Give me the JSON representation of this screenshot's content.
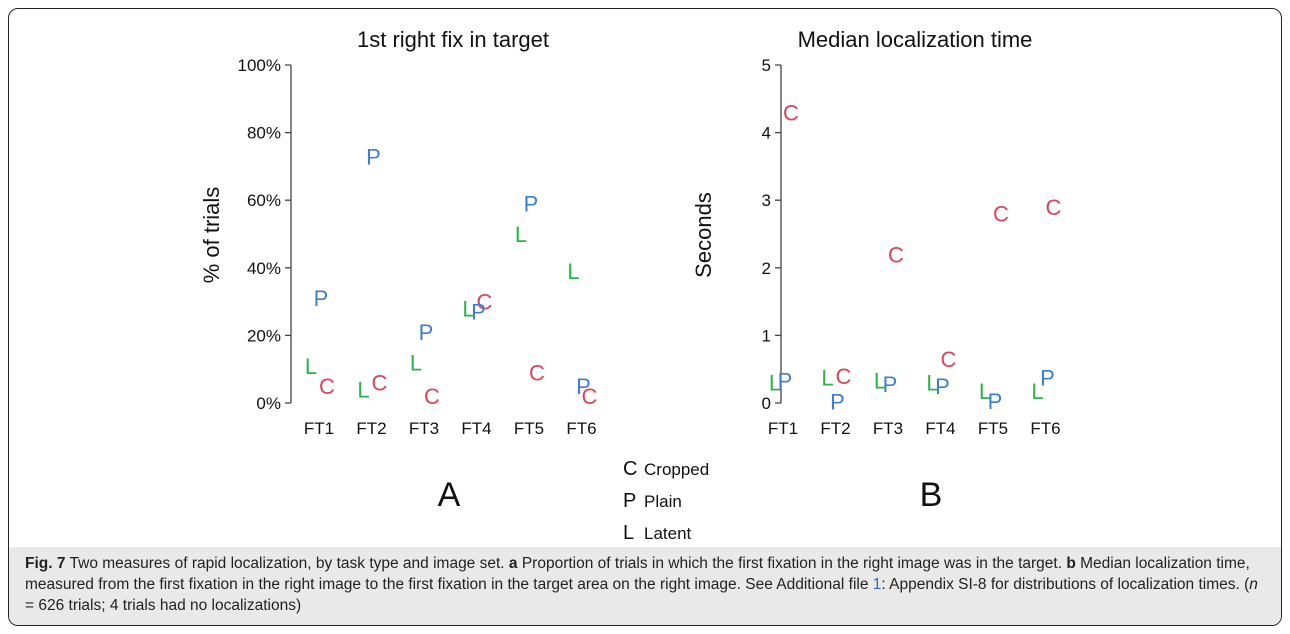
{
  "colors": {
    "cropped": "#d9455c",
    "plain": "#3f7ed0",
    "latent": "#2cb34a"
  },
  "chart_data": [
    {
      "type": "scatter",
      "title": "1st right fix in target",
      "xlabel": "",
      "ylabel": "% of trials",
      "categories": [
        "FT1",
        "FT2",
        "FT3",
        "FT4",
        "FT5",
        "FT6"
      ],
      "ylim": [
        0,
        100
      ],
      "yticks": [
        "0%",
        "20%",
        "40%",
        "60%",
        "80%",
        "100%"
      ],
      "ytick_values": [
        0,
        20,
        40,
        60,
        80,
        100
      ],
      "panel_letter": "A",
      "series": [
        {
          "name": "Cropped",
          "marker": "C",
          "values": [
            5,
            6,
            2,
            30,
            9,
            2
          ]
        },
        {
          "name": "Plain",
          "marker": "P",
          "values": [
            31,
            73,
            21,
            27,
            59,
            5
          ]
        },
        {
          "name": "Latent",
          "marker": "L",
          "values": [
            11,
            4,
            12,
            28,
            50,
            39
          ]
        }
      ]
    },
    {
      "type": "scatter",
      "title": "Median localization time",
      "xlabel": "",
      "ylabel": "Seconds",
      "categories": [
        "FT1",
        "FT2",
        "FT3",
        "FT4",
        "FT5",
        "FT6"
      ],
      "ylim": [
        0,
        5
      ],
      "yticks": [
        "0",
        "1",
        "2",
        "3",
        "4",
        "5"
      ],
      "ytick_values": [
        0,
        1,
        2,
        3,
        4,
        5
      ],
      "panel_letter": "B",
      "series": [
        {
          "name": "Cropped",
          "marker": "C",
          "values": [
            4.3,
            0.4,
            2.2,
            0.65,
            2.8,
            2.9
          ]
        },
        {
          "name": "Plain",
          "marker": "P",
          "values": [
            0.33,
            0.02,
            0.28,
            0.25,
            0.03,
            0.38
          ]
        },
        {
          "name": "Latent",
          "marker": "L",
          "values": [
            0.3,
            0.38,
            0.33,
            0.3,
            0.18,
            0.18
          ]
        }
      ]
    }
  ],
  "legend": [
    {
      "marker": "C",
      "label": "Cropped"
    },
    {
      "marker": "P",
      "label": "Plain"
    },
    {
      "marker": "L",
      "label": "Latent"
    }
  ],
  "caption": {
    "fig_label": "Fig. 7",
    "text1": " Two measures of rapid localization, by task type and image set. ",
    "a_label": "a",
    "text2": " Proportion of trials in which the first fixation in the right image was in the target. ",
    "b_label": "b",
    "text3": " Median localization time, measured from the first fixation in the right image to the first fixation in the target area on the right image. See Additional file ",
    "link": "1",
    "text4": ": Appendix SI-8 for distributions of localization times. (",
    "n_italic": "n",
    "text5": " = 626 trials; 4 trials had no localizations)"
  }
}
